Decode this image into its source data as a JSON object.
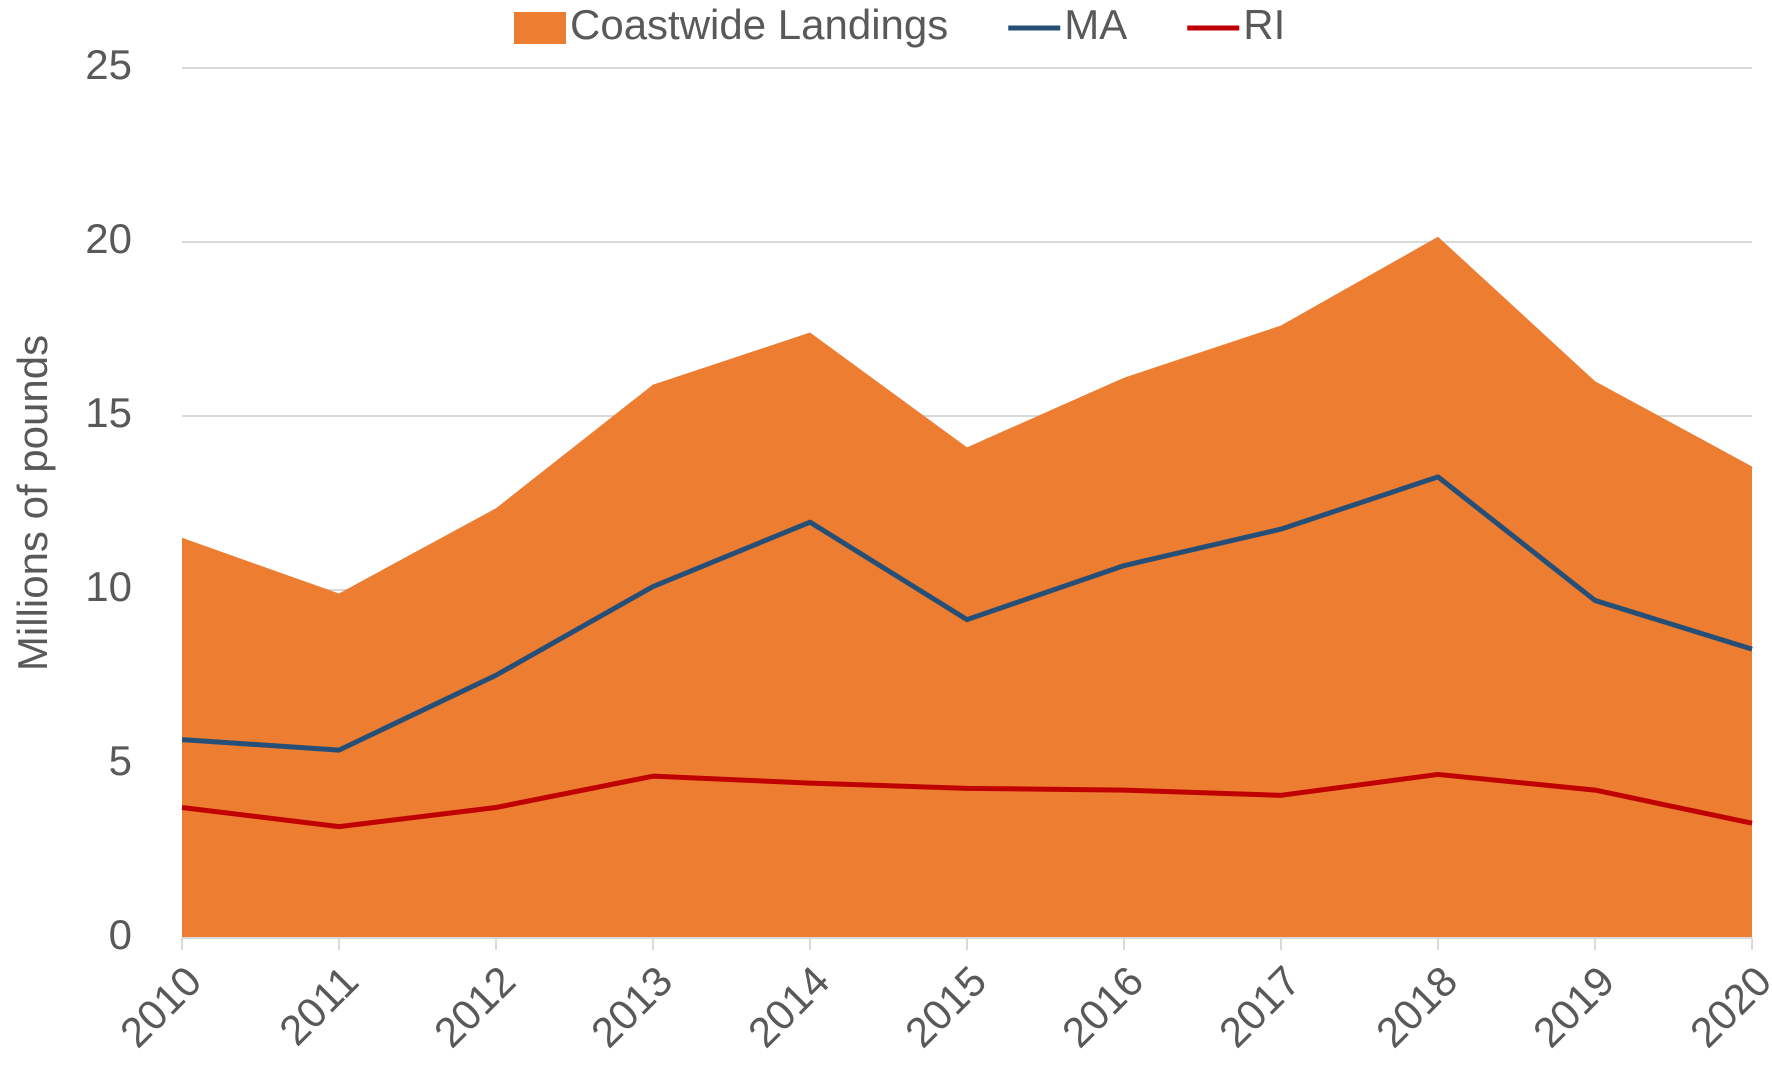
{
  "chart_data": {
    "type": "area",
    "y_label": "Millions of pounds",
    "categories": [
      "2010",
      "2011",
      "2012",
      "2013",
      "2014",
      "2015",
      "2016",
      "2017",
      "2018",
      "2019",
      "2020"
    ],
    "series": [
      {
        "name": "Coastwide Landings",
        "type": "area",
        "color": "#ed7d31",
        "values": [
          11.5,
          9.9,
          12.35,
          15.9,
          17.4,
          14.1,
          16.1,
          17.6,
          20.15,
          16.0,
          13.55
        ]
      },
      {
        "name": "MA",
        "type": "line",
        "color": "#264f78",
        "values": [
          5.7,
          5.4,
          7.55,
          10.1,
          11.95,
          9.15,
          10.7,
          11.75,
          13.25,
          9.7,
          8.3
        ]
      },
      {
        "name": "RI",
        "type": "line",
        "color": "#c00000",
        "values": [
          3.75,
          3.2,
          3.75,
          4.65,
          4.45,
          4.3,
          4.25,
          4.1,
          4.7,
          4.25,
          3.3
        ]
      }
    ],
    "ylim": [
      0,
      25
    ],
    "yticks": [
      0,
      5,
      10,
      15,
      20,
      25
    ],
    "grid": true,
    "legend": "top"
  }
}
